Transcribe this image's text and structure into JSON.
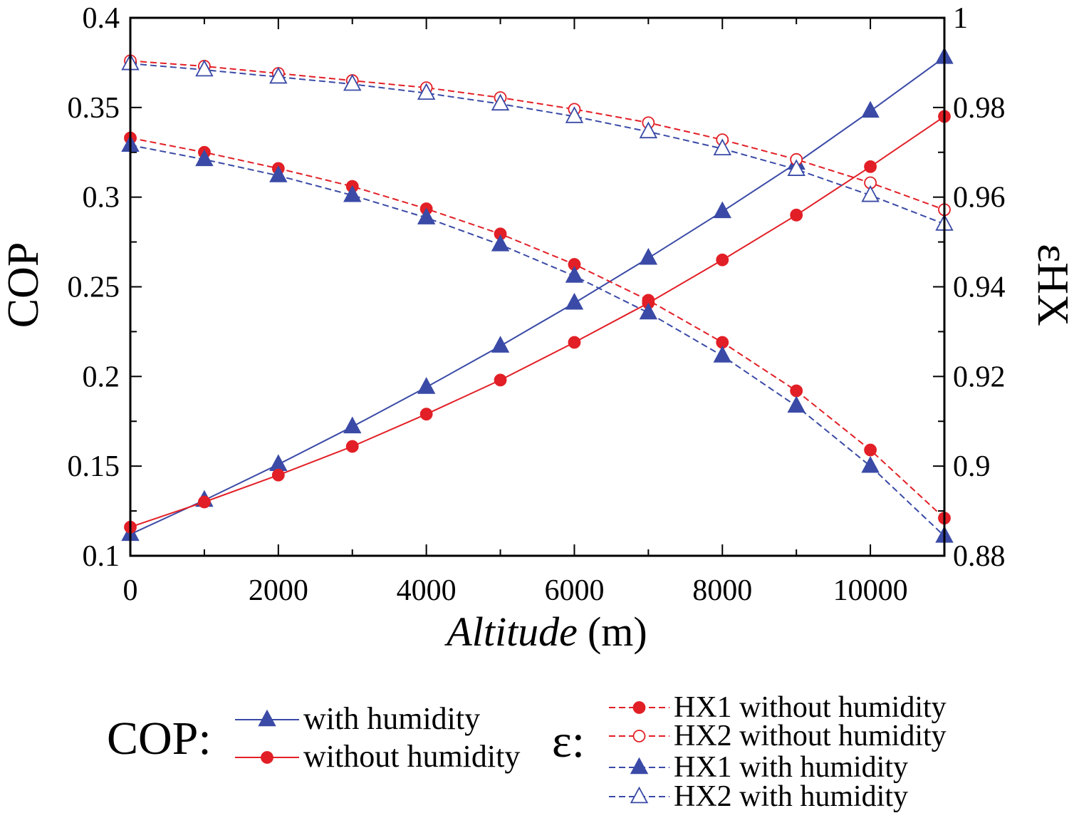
{
  "chart_data": {
    "type": "line",
    "xlabel": "Altitude",
    "xlabel_unit": "(m)",
    "ylabel_left": "COP",
    "ylabel_right": "εHX",
    "xlim": [
      0,
      11000
    ],
    "ylim_left": [
      0.1,
      0.4
    ],
    "ylim_right": [
      0.88,
      1.0
    ],
    "x_ticks": [
      "0",
      "2000",
      "4000",
      "6000",
      "8000",
      "10000"
    ],
    "y_left_ticks": [
      "0.1",
      "0.15",
      "0.2",
      "0.25",
      "0.3",
      "0.35",
      "0.4"
    ],
    "y_right_ticks": [
      "0.88",
      "0.9",
      "0.92",
      "0.94",
      "0.96",
      "0.98",
      "1"
    ],
    "grid": false,
    "x": [
      0,
      1000,
      2000,
      3000,
      4000,
      5000,
      6000,
      7000,
      8000,
      9000,
      10000,
      11000
    ],
    "series": [
      {
        "name": "COP with humidity",
        "axis": "left",
        "color": "#3a4aa6",
        "dash": "solid",
        "marker": "triangle",
        "filled": true,
        "values": [
          0.112,
          0.131,
          0.151,
          0.172,
          0.194,
          0.217,
          0.241,
          0.266,
          0.292,
          0.319,
          0.348,
          0.378
        ]
      },
      {
        "name": "COP without humidity",
        "axis": "left",
        "color": "#e21f26",
        "dash": "solid",
        "marker": "circle",
        "filled": true,
        "values": [
          0.116,
          0.13,
          0.145,
          0.161,
          0.179,
          0.198,
          0.219,
          0.241,
          0.265,
          0.29,
          0.317,
          0.345
        ]
      },
      {
        "name": "HX1 without humidity",
        "axis": "right",
        "color": "#e21f26",
        "dash": "dashed",
        "marker": "circle",
        "filled": true,
        "values": [
          0.9732,
          0.97,
          0.9664,
          0.9624,
          0.9574,
          0.9518,
          0.945,
          0.937,
          0.9276,
          0.9168,
          0.9036,
          0.8884
        ]
      },
      {
        "name": "HX2 without humidity",
        "axis": "right",
        "color": "#e21f26",
        "dash": "dashed",
        "marker": "circle",
        "filled": false,
        "values": [
          0.9904,
          0.9892,
          0.9876,
          0.986,
          0.9844,
          0.9822,
          0.9796,
          0.9766,
          0.9728,
          0.9684,
          0.9632,
          0.9572
        ]
      },
      {
        "name": "HX1 with humidity",
        "axis": "right",
        "color": "#3a4aa6",
        "dash": "dashed",
        "marker": "triangle",
        "filled": true,
        "values": [
          0.9716,
          0.9684,
          0.9648,
          0.9604,
          0.9554,
          0.9494,
          0.9424,
          0.9342,
          0.9246,
          0.9134,
          0.9,
          0.8844
        ]
      },
      {
        "name": "HX2 with humidity",
        "axis": "right",
        "color": "#3a4aa6",
        "dash": "dashed",
        "marker": "triangle",
        "filled": false,
        "values": [
          0.9898,
          0.9884,
          0.9868,
          0.9852,
          0.9832,
          0.9808,
          0.978,
          0.9746,
          0.9708,
          0.9662,
          0.9604,
          0.954
        ]
      }
    ],
    "legend": {
      "cop_title": "COP:",
      "cop_items": [
        {
          "label": "with humidity",
          "series": 0
        },
        {
          "label": "without humidity",
          "series": 1
        }
      ],
      "eps_title": "ε:",
      "eps_items": [
        {
          "label": "HX1 without humidity",
          "series": 2
        },
        {
          "label": "HX2 without humidity",
          "series": 3
        },
        {
          "label": "HX1 with humidity",
          "series": 4
        },
        {
          "label": "HX2 with humidity",
          "series": 5
        }
      ]
    }
  }
}
